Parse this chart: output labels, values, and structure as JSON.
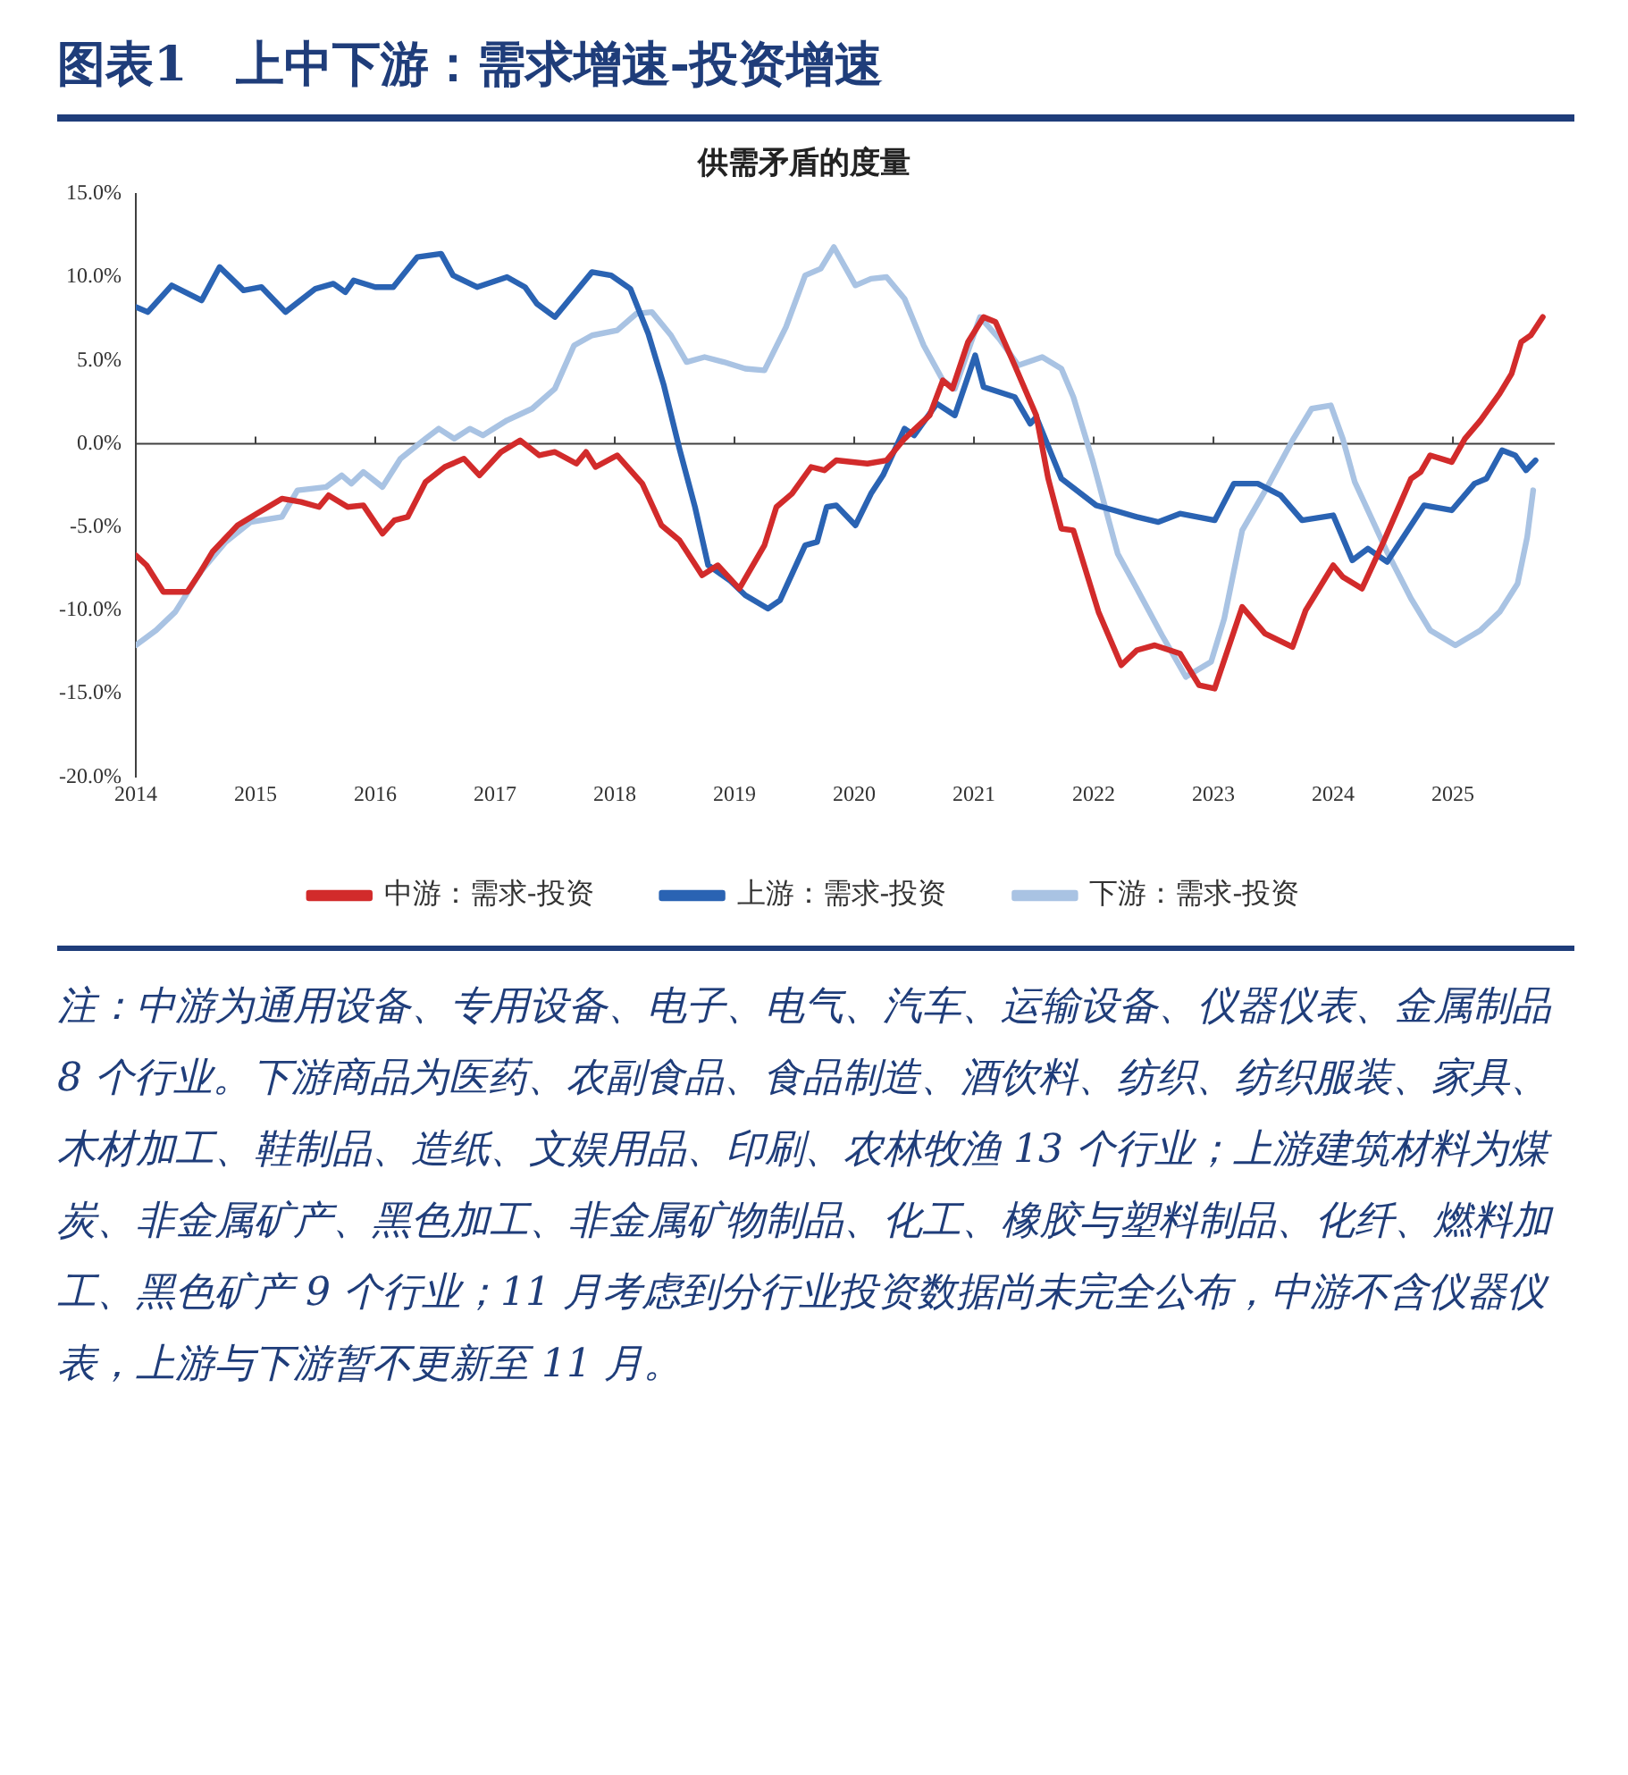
{
  "chart_data": {
    "type": "line",
    "title": "图表1　上中下游：需求增速-投资增速",
    "subtitle": "供需矛盾的度量",
    "xlim": [
      2014,
      2025.85
    ],
    "xticks": [
      2014,
      2015,
      2016,
      2017,
      2018,
      2019,
      2020,
      2021,
      2022,
      2023,
      2024,
      2025
    ],
    "ylim": [
      -20,
      15
    ],
    "yticks": [
      {
        "value": -20,
        "label": "-20.0%"
      },
      {
        "value": -15,
        "label": "-15.0%"
      },
      {
        "value": -10,
        "label": "-10.0%"
      },
      {
        "value": -5,
        "label": "-5.0%"
      },
      {
        "value": 0,
        "label": "0.0%"
      },
      {
        "value": 5,
        "label": "5.0%"
      },
      {
        "value": 10,
        "label": "10.0%"
      },
      {
        "value": 15,
        "label": "15.0%"
      }
    ],
    "grid": false,
    "legend": "bottom",
    "marker": "none",
    "line_style": "solid",
    "ref_lines": [
      {
        "axis": "y",
        "value": 0,
        "color": "#404040"
      }
    ],
    "series": [
      {
        "name": "中游：需求-投资",
        "color": "#d22b2b",
        "x": [
          2014.0,
          2014.09,
          2014.23,
          2014.43,
          2014.54,
          2014.64,
          2014.85,
          2015.01,
          2015.22,
          2015.38,
          2015.53,
          2015.61,
          2015.77,
          2015.9,
          2016.06,
          2016.16,
          2016.27,
          2016.42,
          2016.58,
          2016.74,
          2016.87,
          2017.05,
          2017.21,
          2017.37,
          2017.5,
          2017.68,
          2017.76,
          2017.84,
          2018.02,
          2018.23,
          2018.39,
          2018.54,
          2018.73,
          2018.86,
          2019.04,
          2019.25,
          2019.35,
          2019.48,
          2019.64,
          2019.75,
          2019.85,
          2020.11,
          2020.27,
          2020.42,
          2020.63,
          2020.74,
          2020.82,
          2020.95,
          2021.08,
          2021.18,
          2021.34,
          2021.52,
          2021.62,
          2021.73,
          2021.83,
          2022.04,
          2022.23,
          2022.36,
          2022.51,
          2022.72,
          2022.88,
          2023.01,
          2023.24,
          2023.43,
          2023.66,
          2023.77,
          2024.0,
          2024.08,
          2024.24,
          2024.42,
          2024.65,
          2024.73,
          2024.81,
          2024.99,
          2025.1,
          2025.23,
          2025.39,
          2025.49,
          2025.57,
          2025.65,
          2025.75
        ],
        "values": [
          -6.7,
          -7.3,
          -8.9,
          -8.9,
          -7.7,
          -6.5,
          -4.9,
          -4.2,
          -3.3,
          -3.5,
          -3.8,
          -3.1,
          -3.8,
          -3.7,
          -5.4,
          -4.6,
          -4.4,
          -2.3,
          -1.4,
          -0.9,
          -1.9,
          -0.5,
          0.2,
          -0.7,
          -0.5,
          -1.2,
          -0.5,
          -1.4,
          -0.7,
          -2.4,
          -4.9,
          -5.8,
          -7.9,
          -7.3,
          -8.7,
          -6.1,
          -3.8,
          -3.0,
          -1.4,
          -1.6,
          -1.0,
          -1.2,
          -1.0,
          0.3,
          1.7,
          3.8,
          3.3,
          6.1,
          7.6,
          7.3,
          4.7,
          1.7,
          -2.1,
          -5.1,
          -5.2,
          -10.1,
          -13.3,
          -12.4,
          -12.1,
          -12.6,
          -14.5,
          -14.7,
          -9.8,
          -11.4,
          -12.2,
          -10.0,
          -7.3,
          -8.0,
          -8.7,
          -5.9,
          -2.1,
          -1.7,
          -0.7,
          -1.1,
          0.3,
          1.4,
          3.0,
          4.2,
          6.1,
          6.5,
          7.6
        ]
      },
      {
        "name": "上游：需求-投资",
        "color": "#2a63b3",
        "x": [
          2014.0,
          2014.1,
          2014.3,
          2014.55,
          2014.7,
          2014.9,
          2015.05,
          2015.25,
          2015.5,
          2015.65,
          2015.75,
          2015.82,
          2016.0,
          2016.15,
          2016.35,
          2016.55,
          2016.65,
          2016.85,
          2017.1,
          2017.25,
          2017.35,
          2017.5,
          2017.81,
          2017.97,
          2018.13,
          2018.28,
          2018.41,
          2018.54,
          2018.67,
          2018.78,
          2018.96,
          2019.09,
          2019.28,
          2019.38,
          2019.59,
          2019.69,
          2019.77,
          2019.85,
          2020.01,
          2020.14,
          2020.24,
          2020.42,
          2020.5,
          2020.69,
          2020.84,
          2021.01,
          2021.08,
          2021.34,
          2021.47,
          2021.52,
          2021.73,
          2022.02,
          2022.17,
          2022.36,
          2022.54,
          2022.72,
          2023.01,
          2023.17,
          2023.37,
          2023.56,
          2023.74,
          2024.0,
          2024.16,
          2024.29,
          2024.45,
          2024.76,
          2024.99,
          2025.18,
          2025.28,
          2025.41,
          2025.52,
          2025.61,
          2025.69
        ],
        "values": [
          8.2,
          7.9,
          9.5,
          8.6,
          10.6,
          9.2,
          9.4,
          7.9,
          9.3,
          9.6,
          9.1,
          9.8,
          9.4,
          9.4,
          11.2,
          11.4,
          10.1,
          9.4,
          10.0,
          9.4,
          8.4,
          7.6,
          10.3,
          10.1,
          9.3,
          6.6,
          3.5,
          -0.3,
          -3.8,
          -7.3,
          -8.2,
          -9.1,
          -9.9,
          -9.4,
          -6.1,
          -5.9,
          -3.8,
          -3.7,
          -4.9,
          -3.0,
          -1.9,
          0.9,
          0.5,
          2.4,
          1.7,
          5.3,
          3.4,
          2.8,
          1.2,
          1.6,
          -2.1,
          -3.7,
          -4.0,
          -4.4,
          -4.7,
          -4.2,
          -4.6,
          -2.4,
          -2.4,
          -3.1,
          -4.6,
          -4.3,
          -7.0,
          -6.3,
          -7.1,
          -3.7,
          -4.0,
          -2.4,
          -2.1,
          -0.4,
          -0.7,
          -1.6,
          -1.0
        ]
      },
      {
        "name": "下游：需求-投资",
        "color": "#a9c3e3",
        "x": [
          2014.0,
          2014.17,
          2014.33,
          2014.54,
          2014.75,
          2014.96,
          2015.22,
          2015.35,
          2015.59,
          2015.72,
          2015.8,
          2015.9,
          2016.06,
          2016.21,
          2016.42,
          2016.53,
          2016.66,
          2016.79,
          2016.9,
          2017.1,
          2017.31,
          2017.5,
          2017.66,
          2017.81,
          2018.02,
          2018.18,
          2018.31,
          2018.47,
          2018.6,
          2018.75,
          2018.91,
          2019.09,
          2019.25,
          2019.43,
          2019.59,
          2019.72,
          2019.83,
          2020.01,
          2020.14,
          2020.27,
          2020.42,
          2020.58,
          2020.74,
          2020.84,
          2021.05,
          2021.21,
          2021.37,
          2021.57,
          2021.73,
          2021.83,
          2021.99,
          2022.2,
          2022.36,
          2022.57,
          2022.77,
          2022.98,
          2023.09,
          2023.24,
          2023.45,
          2023.66,
          2023.82,
          2023.98,
          2024.08,
          2024.18,
          2024.45,
          2024.65,
          2024.81,
          2025.02,
          2025.23,
          2025.39,
          2025.54,
          2025.62,
          2025.67
        ],
        "values": [
          -12.1,
          -11.2,
          -10.1,
          -7.7,
          -5.9,
          -4.7,
          -4.4,
          -2.8,
          -2.6,
          -1.9,
          -2.4,
          -1.7,
          -2.6,
          -0.9,
          0.3,
          0.9,
          0.3,
          0.9,
          0.5,
          1.4,
          2.1,
          3.3,
          5.9,
          6.5,
          6.8,
          7.8,
          7.9,
          6.5,
          4.9,
          5.2,
          4.9,
          4.5,
          4.4,
          7.0,
          10.1,
          10.5,
          11.8,
          9.5,
          9.9,
          10.0,
          8.7,
          5.9,
          3.8,
          3.3,
          7.6,
          6.3,
          4.7,
          5.2,
          4.5,
          2.8,
          -1.0,
          -6.6,
          -8.7,
          -11.5,
          -14.0,
          -13.1,
          -10.5,
          -5.2,
          -2.6,
          0.2,
          2.1,
          2.3,
          0.3,
          -2.3,
          -6.5,
          -9.3,
          -11.2,
          -12.1,
          -11.2,
          -10.1,
          -8.4,
          -5.6,
          -2.8
        ]
      }
    ],
    "annotations": [
      "注：中游为通用设备、专用设备、电子、电气、汽车、运输设备、仪器仪表、金属制品 8 个行业。下游商品为医药、农副食品、食品制造、酒饮料、纺织、纺织服装、家具、木材加工、鞋制品、造纸、文娱用品、印刷、农林牧渔 13 个行业；上游建筑材料为煤炭、非金属矿产、黑色加工、非金属矿物制品、化工、橡胶与塑料制品、化纤、燃料加工、黑色矿产 9 个行业；11 月考虑到分行业投资数据尚未完全公布，中游不含仪器仪表，上游与下游暂不更新至 11 月。"
    ]
  }
}
